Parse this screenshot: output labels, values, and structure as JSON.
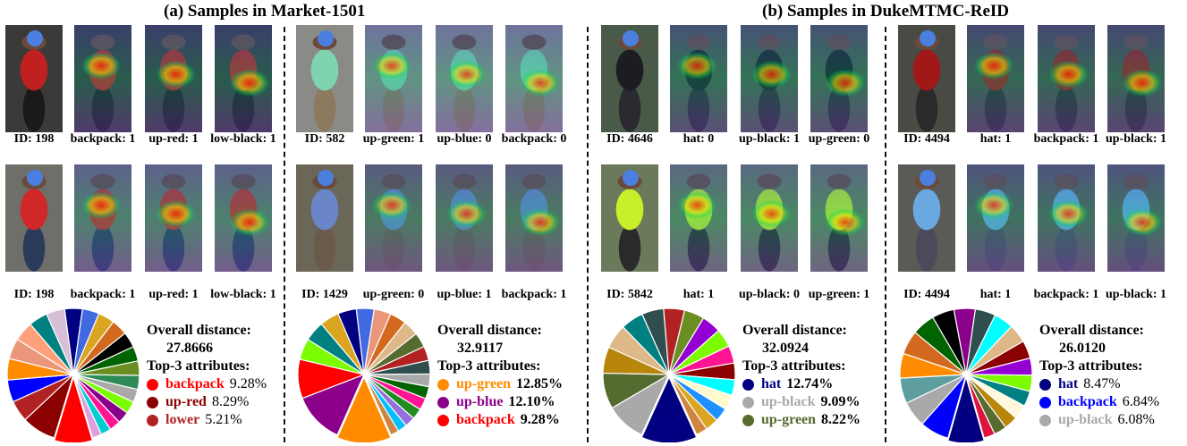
{
  "titles": {
    "market": "(a) Samples in Market-1501",
    "duke": "(b) Samples in DukeMTMC-ReID"
  },
  "groups": [
    {
      "rows": [
        {
          "captions": [
            "ID: 198",
            "backpack: 1",
            "up-red: 1",
            "low-black: 1"
          ],
          "theme": "red-street"
        },
        {
          "captions": [
            "ID: 198",
            "backpack: 1",
            "up-red: 1",
            "low-black: 1"
          ],
          "theme": "red-street2"
        }
      ],
      "pie": {
        "slices": [
          9.28,
          8.29,
          5.21,
          5.4,
          5.2,
          5.0,
          4.8,
          4.6,
          4.5,
          4.3,
          4.1,
          4.0,
          3.9,
          3.8,
          3.6,
          3.5,
          3.4,
          3.2,
          3.0,
          2.9,
          2.7,
          2.5,
          2.3
        ],
        "colors": [
          "#ff0000",
          "#8b0000",
          "#b22222",
          "#0000ff",
          "#ff8c00",
          "#e9967a",
          "#ffa07a",
          "#008080",
          "#d8bfd8",
          "#000080",
          "#4169e1",
          "#daa520",
          "#d2691e",
          "#000000",
          "#006400",
          "#6b8e23",
          "#2e8b57",
          "#a9a9a9",
          "#7cfc00",
          "#8b008b",
          "#ff1493",
          "#00ced1",
          "#dda0dd"
        ]
      },
      "stats": {
        "label": "Overall distance:",
        "value": "27.8666",
        "top_label": "Top-3 attributes:",
        "attrs": [
          {
            "name": "backpack",
            "pct": "9.28%",
            "color": "#ff0000",
            "bold": false
          },
          {
            "name": "up-red",
            "pct": "8.29%",
            "color": "#8b0000",
            "bold": false
          },
          {
            "name": "lower",
            "pct": "5.21%",
            "color": "#b22222",
            "bold": false
          }
        ]
      }
    },
    {
      "rows": [
        {
          "captions": [
            "ID: 582",
            "up-green: 1",
            "up-blue: 0",
            "backpack: 0"
          ],
          "theme": "green-gray"
        },
        {
          "captions": [
            "ID: 1429",
            "up-green: 0",
            "up-blue: 1",
            "backpack: 1"
          ],
          "theme": "blue-street"
        }
      ],
      "pie": {
        "slices": [
          12.85,
          12.1,
          9.28,
          5.0,
          4.8,
          4.6,
          4.4,
          4.2,
          4.0,
          3.9,
          3.7,
          3.5,
          3.4,
          3.2,
          3.0,
          2.9,
          2.8,
          2.6,
          2.4,
          2.2,
          2.0
        ],
        "colors": [
          "#ff8c00",
          "#8b008b",
          "#ff0000",
          "#7cfc00",
          "#008080",
          "#daa520",
          "#000080",
          "#4169e1",
          "#e9967a",
          "#d2691e",
          "#deb887",
          "#556b2f",
          "#b22222",
          "#2f4f4f",
          "#a9a9a9",
          "#006400",
          "#ff1493",
          "#228b22",
          "#9370db",
          "#00bfff",
          "#cd853f"
        ]
      },
      "stats": {
        "label": "Overall distance:",
        "value": "32.9117",
        "top_label": "Top-3 attributes:",
        "attrs": [
          {
            "name": "up-green",
            "pct": "12.85%",
            "color": "#ff8c00",
            "bold": true
          },
          {
            "name": "up-blue",
            "pct": "12.10%",
            "color": "#8b008b",
            "bold": true
          },
          {
            "name": "backpack",
            "pct": "9.28%",
            "color": "#ff0000",
            "bold": true
          }
        ]
      }
    },
    {
      "rows": [
        {
          "captions": [
            "ID: 4646",
            "hat: 0",
            "up-black: 1",
            "up-green: 0"
          ],
          "theme": "black-coat"
        },
        {
          "captions": [
            "ID: 5842",
            "hat: 1",
            "up-black: 0",
            "up-green: 1"
          ],
          "theme": "hivis"
        }
      ],
      "pie": {
        "slices": [
          12.74,
          9.09,
          8.22,
          6.0,
          5.6,
          5.2,
          5.0,
          4.8,
          4.6,
          4.4,
          4.2,
          4.0,
          3.8,
          3.6,
          3.4,
          3.2,
          3.0,
          2.6
        ],
        "colors": [
          "#000080",
          "#a9a9a9",
          "#556b2f",
          "#b8860b",
          "#deb887",
          "#008080",
          "#2f4f4f",
          "#b22222",
          "#6b8e23",
          "#9400d3",
          "#7cfc00",
          "#ff1493",
          "#8b0000",
          "#00ffff",
          "#fffacd",
          "#1e90ff",
          "#daa520",
          "#cd853f"
        ]
      },
      "stats": {
        "label": "Overall distance:",
        "value": "32.0924",
        "top_label": "Top-3 attributes:",
        "attrs": [
          {
            "name": "hat",
            "pct": "12.74%",
            "color": "#000080",
            "bold": true
          },
          {
            "name": "up-black",
            "pct": "9.09%",
            "color": "#a9a9a9",
            "bold": true
          },
          {
            "name": "up-green",
            "pct": "8.22%",
            "color": "#556b2f",
            "bold": true
          }
        ]
      }
    },
    {
      "rows": [
        {
          "captions": [
            "ID: 4494",
            "hat: 1",
            "backpack: 1",
            "up-black: 1"
          ],
          "theme": "red-shirt-dark"
        },
        {
          "captions": [
            "ID: 4494",
            "hat: 1",
            "backpack: 1",
            "up-black: 1"
          ],
          "theme": "blue-bag"
        }
      ],
      "pie": {
        "slices": [
          8.47,
          6.84,
          6.08,
          6.0,
          5.8,
          5.6,
          5.4,
          5.2,
          5.0,
          4.8,
          4.6,
          4.4,
          4.2,
          4.0,
          3.8,
          3.6,
          3.4,
          3.2,
          3.0,
          2.6
        ],
        "colors": [
          "#000080",
          "#0000ff",
          "#a9a9a9",
          "#5f9ea0",
          "#ff8c00",
          "#d2691e",
          "#006400",
          "#000000",
          "#8b008b",
          "#2f4f4f",
          "#00ffff",
          "#deb887",
          "#8b0000",
          "#9400d3",
          "#7cfc00",
          "#008080",
          "#fff8dc",
          "#b8860b",
          "#556b2f",
          "#dc143c"
        ]
      },
      "stats": {
        "label": "Overall distance:",
        "value": "26.0120",
        "top_label": "Top-3 attributes:",
        "attrs": [
          {
            "name": "hat",
            "pct": "8.47%",
            "color": "#000080",
            "bold": false
          },
          {
            "name": "backpack",
            "pct": "6.84%",
            "color": "#0000ff",
            "bold": false
          },
          {
            "name": "up-black",
            "pct": "6.08%",
            "color": "#a9a9a9",
            "bold": false
          }
        ]
      }
    }
  ]
}
